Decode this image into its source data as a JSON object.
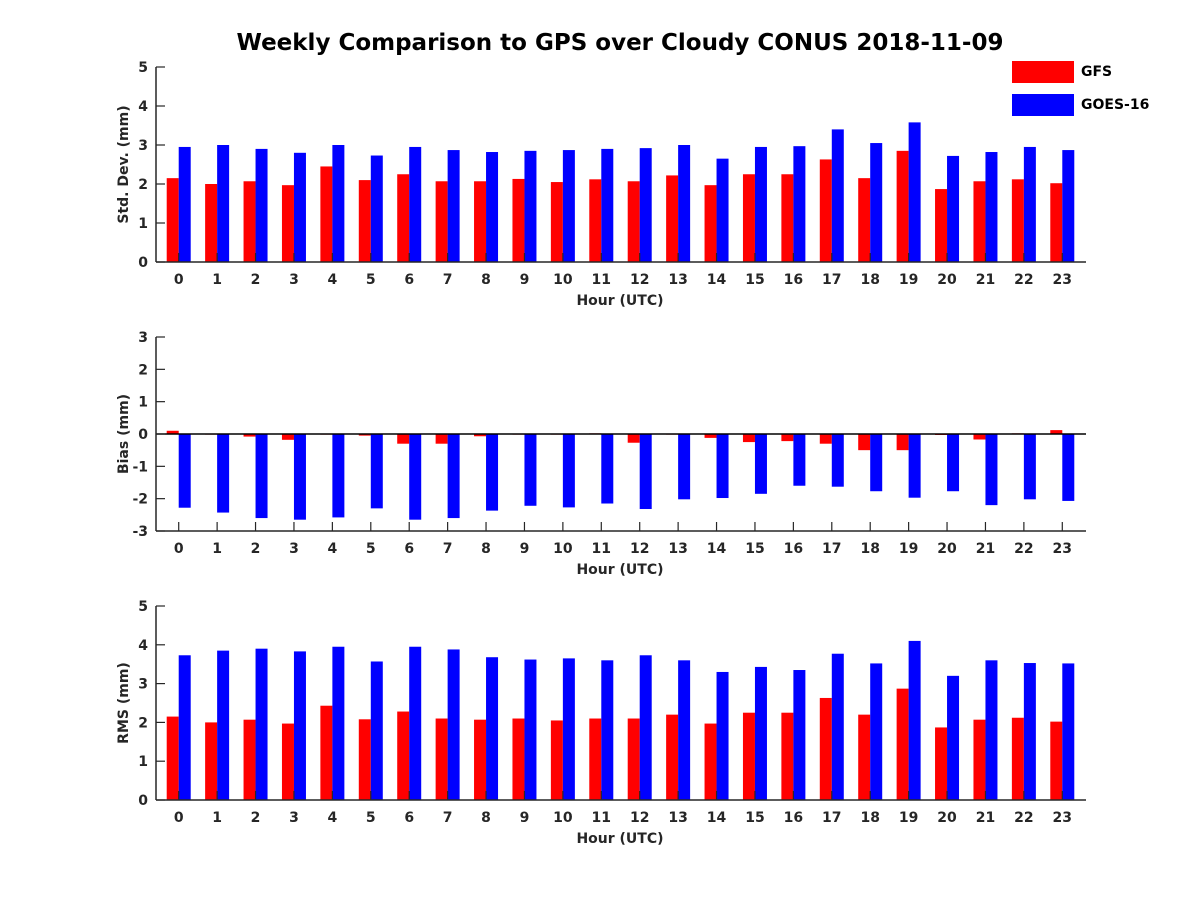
{
  "title": "Weekly Comparison to GPS over Cloudy CONUS 2018-11-09",
  "legend": [
    {
      "label": "GFS",
      "color": "#ff0000"
    },
    {
      "label": "GOES-16",
      "color": "#0000ff"
    }
  ],
  "chart_data": [
    {
      "type": "bar",
      "ylabel": "Std. Dev. (mm)",
      "xlabel": "Hour (UTC)",
      "ylim": [
        0,
        5
      ],
      "yticks": [
        0,
        1,
        2,
        3,
        4,
        5
      ],
      "categories": [
        "0",
        "1",
        "2",
        "3",
        "4",
        "5",
        "6",
        "7",
        "8",
        "9",
        "10",
        "11",
        "12",
        "13",
        "14",
        "15",
        "16",
        "17",
        "18",
        "19",
        "20",
        "21",
        "22",
        "23"
      ],
      "series": [
        {
          "name": "GFS",
          "color": "#ff0000",
          "values": [
            2.15,
            2.0,
            2.07,
            1.97,
            2.45,
            2.1,
            2.25,
            2.07,
            2.07,
            2.13,
            2.05,
            2.12,
            2.07,
            2.22,
            1.97,
            2.25,
            2.25,
            2.63,
            2.15,
            2.85,
            1.87,
            2.07,
            2.12,
            2.02
          ]
        },
        {
          "name": "GOES-16",
          "color": "#0000ff",
          "values": [
            2.95,
            3.0,
            2.9,
            2.8,
            3.0,
            2.73,
            2.95,
            2.87,
            2.82,
            2.85,
            2.87,
            2.9,
            2.92,
            3.0,
            2.65,
            2.95,
            2.97,
            3.4,
            3.05,
            3.58,
            2.72,
            2.82,
            2.95,
            2.87
          ]
        }
      ]
    },
    {
      "type": "bar",
      "ylabel": "Bias (mm)",
      "xlabel": "Hour (UTC)",
      "ylim": [
        -3,
        3
      ],
      "yticks": [
        -3,
        -2,
        -1,
        0,
        1,
        2,
        3
      ],
      "categories": [
        "0",
        "1",
        "2",
        "3",
        "4",
        "5",
        "6",
        "7",
        "8",
        "9",
        "10",
        "11",
        "12",
        "13",
        "14",
        "15",
        "16",
        "17",
        "18",
        "19",
        "20",
        "21",
        "22",
        "23"
      ],
      "series": [
        {
          "name": "GFS",
          "color": "#ff0000",
          "values": [
            0.1,
            0.0,
            -0.08,
            -0.18,
            0.0,
            -0.05,
            -0.3,
            -0.3,
            -0.07,
            0.0,
            0.0,
            0.02,
            -0.27,
            0.0,
            -0.12,
            -0.25,
            -0.22,
            -0.3,
            -0.5,
            -0.5,
            -0.03,
            -0.17,
            0.02,
            0.12
          ]
        },
        {
          "name": "GOES-16",
          "color": "#0000ff",
          "values": [
            -2.28,
            -2.43,
            -2.6,
            -2.65,
            -2.58,
            -2.3,
            -2.65,
            -2.6,
            -2.37,
            -2.22,
            -2.27,
            -2.15,
            -2.32,
            -2.02,
            -1.98,
            -1.85,
            -1.6,
            -1.63,
            -1.77,
            -1.97,
            -1.77,
            -2.2,
            -2.02,
            -2.07
          ]
        }
      ]
    },
    {
      "type": "bar",
      "ylabel": "RMS (mm)",
      "xlabel": "Hour (UTC)",
      "ylim": [
        0,
        5
      ],
      "yticks": [
        0,
        1,
        2,
        3,
        4,
        5
      ],
      "categories": [
        "0",
        "1",
        "2",
        "3",
        "4",
        "5",
        "6",
        "7",
        "8",
        "9",
        "10",
        "11",
        "12",
        "13",
        "14",
        "15",
        "16",
        "17",
        "18",
        "19",
        "20",
        "21",
        "22",
        "23"
      ],
      "series": [
        {
          "name": "GFS",
          "color": "#ff0000",
          "values": [
            2.15,
            2.0,
            2.07,
            1.97,
            2.43,
            2.08,
            2.28,
            2.1,
            2.07,
            2.1,
            2.05,
            2.1,
            2.1,
            2.2,
            1.97,
            2.25,
            2.25,
            2.63,
            2.2,
            2.87,
            1.87,
            2.07,
            2.12,
            2.02
          ]
        },
        {
          "name": "GOES-16",
          "color": "#0000ff",
          "values": [
            3.73,
            3.85,
            3.9,
            3.83,
            3.95,
            3.57,
            3.95,
            3.88,
            3.68,
            3.62,
            3.65,
            3.6,
            3.73,
            3.6,
            3.3,
            3.43,
            3.35,
            3.77,
            3.52,
            4.1,
            3.2,
            3.6,
            3.53,
            3.52
          ]
        }
      ]
    }
  ]
}
